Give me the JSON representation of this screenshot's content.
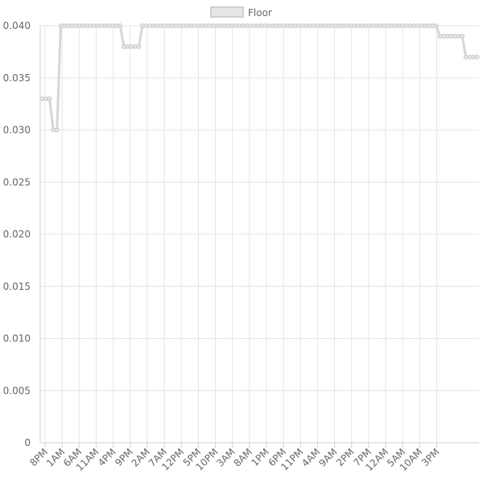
{
  "chart_data": {
    "type": "line",
    "legend": {
      "position": "top"
    },
    "grid": true,
    "ylim": [
      0,
      0.04
    ],
    "yticks": [
      "0",
      "0.005",
      "0.010",
      "0.015",
      "0.020",
      "0.025",
      "0.030",
      "0.035",
      "0.040"
    ],
    "xtick_labels": [
      "8PM",
      "1AM",
      "6AM",
      "11AM",
      "4PM",
      "9PM",
      "2AM",
      "7AM",
      "12PM",
      "5PM",
      "10PM",
      "3AM",
      "8AM",
      "1PM",
      "6PM",
      "11PM",
      "4AM",
      "9AM",
      "2PM",
      "7PM",
      "12AM",
      "5AM",
      "10AM",
      "3PM"
    ],
    "series": [
      {
        "name": "Floor",
        "color": "#d6d6d6",
        "values": [
          0.033,
          0.033,
          0.033,
          0.03,
          0.03,
          0.04,
          0.04,
          0.04,
          0.04,
          0.04,
          0.04,
          0.04,
          0.04,
          0.04,
          0.04,
          0.04,
          0.04,
          0.04,
          0.04,
          0.04,
          0.04,
          0.04,
          0.038,
          0.038,
          0.038,
          0.038,
          0.038,
          0.04,
          0.04,
          0.04,
          0.04,
          0.04,
          0.04,
          0.04,
          0.04,
          0.04,
          0.04,
          0.04,
          0.04,
          0.04,
          0.04,
          0.04,
          0.04,
          0.04,
          0.04,
          0.04,
          0.04,
          0.04,
          0.04,
          0.04,
          0.04,
          0.04,
          0.04,
          0.04,
          0.04,
          0.04,
          0.04,
          0.04,
          0.04,
          0.04,
          0.04,
          0.04,
          0.04,
          0.04,
          0.04,
          0.04,
          0.04,
          0.04,
          0.04,
          0.04,
          0.04,
          0.04,
          0.04,
          0.04,
          0.04,
          0.04,
          0.04,
          0.04,
          0.04,
          0.04,
          0.04,
          0.04,
          0.04,
          0.04,
          0.04,
          0.04,
          0.04,
          0.04,
          0.04,
          0.04,
          0.04,
          0.04,
          0.04,
          0.04,
          0.04,
          0.04,
          0.04,
          0.04,
          0.04,
          0.04,
          0.04,
          0.04,
          0.04,
          0.04,
          0.04,
          0.04,
          0.04,
          0.039,
          0.039,
          0.039,
          0.039,
          0.039,
          0.039,
          0.039,
          0.037,
          0.037,
          0.037,
          0.037
        ]
      }
    ]
  }
}
